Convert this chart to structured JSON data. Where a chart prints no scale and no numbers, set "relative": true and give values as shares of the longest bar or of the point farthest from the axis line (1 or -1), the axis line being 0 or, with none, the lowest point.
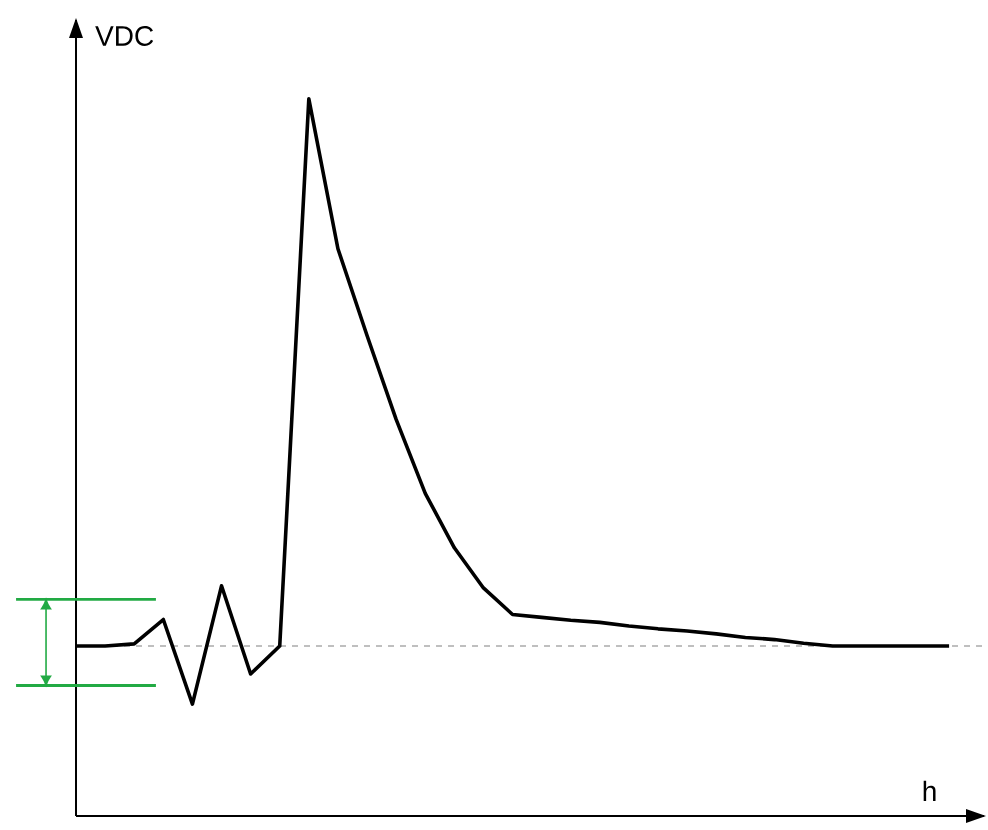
{
  "chart_data": {
    "type": "line",
    "relative": true,
    "xlabel": "h",
    "ylabel": "VDC",
    "categories": [
      null,
      null,
      null,
      null,
      null,
      null,
      null,
      null,
      null,
      null,
      null,
      null,
      null,
      null,
      null,
      null,
      null,
      null,
      null,
      null,
      null,
      null,
      null,
      null,
      null,
      null,
      null,
      null,
      null,
      null,
      null
    ],
    "series": [
      {
        "color": "#000000",
        "values": [
          0.237,
          0.237,
          0.24,
          0.274,
          0.156,
          0.321,
          0.198,
          0.237,
          1,
          0.791,
          0.67,
          0.553,
          0.45,
          0.374,
          0.318,
          0.281,
          0.277,
          0.273,
          0.27,
          0.265,
          0.261,
          0.258,
          0.254,
          0.249,
          0.246,
          0.241,
          0.237,
          0.237,
          0.237,
          0.237,
          0.237
        ]
      }
    ],
    "ref_lines": [
      {
        "axis": "y",
        "value": 0.237,
        "color": "#aaaaaa",
        "line_style": "dashed"
      },
      {
        "axis": "y",
        "value": 0.182,
        "color": "#22aa44",
        "line_style": "solid"
      },
      {
        "axis": "y",
        "value": 0.302,
        "color": "#22aa44",
        "line_style": "solid"
      }
    ],
    "marker": "none",
    "line_style": "solid"
  }
}
